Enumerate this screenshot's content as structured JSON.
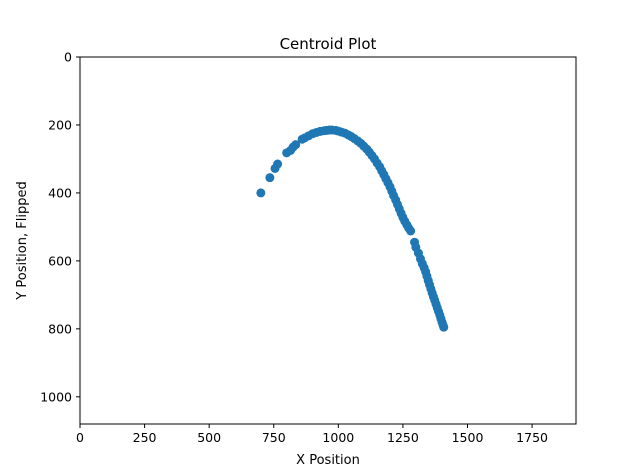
{
  "chart_data": {
    "type": "scatter",
    "title": "Centroid Plot",
    "xlabel": "X Position",
    "ylabel": "Y Position, Flipped",
    "xlim": [
      0,
      1920
    ],
    "ylim": [
      1080,
      0
    ],
    "y_inverted": true,
    "xticks": [
      0,
      250,
      500,
      750,
      1000,
      1250,
      1500,
      1750
    ],
    "yticks": [
      0,
      200,
      400,
      600,
      800,
      1000
    ],
    "grid": false,
    "marker_color": "#1f77b4",
    "points": [
      [
        700,
        400
      ],
      [
        735,
        355
      ],
      [
        755,
        328
      ],
      [
        765,
        315
      ],
      [
        800,
        282
      ],
      [
        815,
        275
      ],
      [
        825,
        265
      ],
      [
        835,
        258
      ],
      [
        860,
        242
      ],
      [
        870,
        238
      ],
      [
        885,
        232
      ],
      [
        900,
        226
      ],
      [
        915,
        222
      ],
      [
        930,
        219
      ],
      [
        945,
        217
      ],
      [
        955,
        216
      ],
      [
        965,
        215
      ],
      [
        975,
        215
      ],
      [
        990,
        216
      ],
      [
        1000,
        218
      ],
      [
        1012,
        221
      ],
      [
        1025,
        224
      ],
      [
        1038,
        229
      ],
      [
        1050,
        234
      ],
      [
        1062,
        240
      ],
      [
        1075,
        247
      ],
      [
        1087,
        254
      ],
      [
        1098,
        262
      ],
      [
        1110,
        271
      ],
      [
        1120,
        280
      ],
      [
        1130,
        290
      ],
      [
        1140,
        300
      ],
      [
        1150,
        312
      ],
      [
        1160,
        323
      ],
      [
        1168,
        335
      ],
      [
        1176,
        346
      ],
      [
        1184,
        358
      ],
      [
        1192,
        370
      ],
      [
        1200,
        382
      ],
      [
        1207,
        395
      ],
      [
        1214,
        408
      ],
      [
        1222,
        421
      ],
      [
        1229,
        434
      ],
      [
        1236,
        447
      ],
      [
        1243,
        460
      ],
      [
        1250,
        472
      ],
      [
        1257,
        483
      ],
      [
        1265,
        494
      ],
      [
        1272,
        503
      ],
      [
        1280,
        512
      ],
      [
        1295,
        545
      ],
      [
        1300,
        560
      ],
      [
        1310,
        577
      ],
      [
        1318,
        594
      ],
      [
        1325,
        608
      ],
      [
        1332,
        620
      ],
      [
        1338,
        632
      ],
      [
        1343,
        645
      ],
      [
        1348,
        658
      ],
      [
        1353,
        670
      ],
      [
        1358,
        682
      ],
      [
        1363,
        694
      ],
      [
        1368,
        705
      ],
      [
        1373,
        716
      ],
      [
        1378,
        727
      ],
      [
        1383,
        738
      ],
      [
        1388,
        749
      ],
      [
        1393,
        760
      ],
      [
        1397,
        770
      ],
      [
        1401,
        780
      ],
      [
        1405,
        788
      ],
      [
        1408,
        795
      ]
    ]
  }
}
